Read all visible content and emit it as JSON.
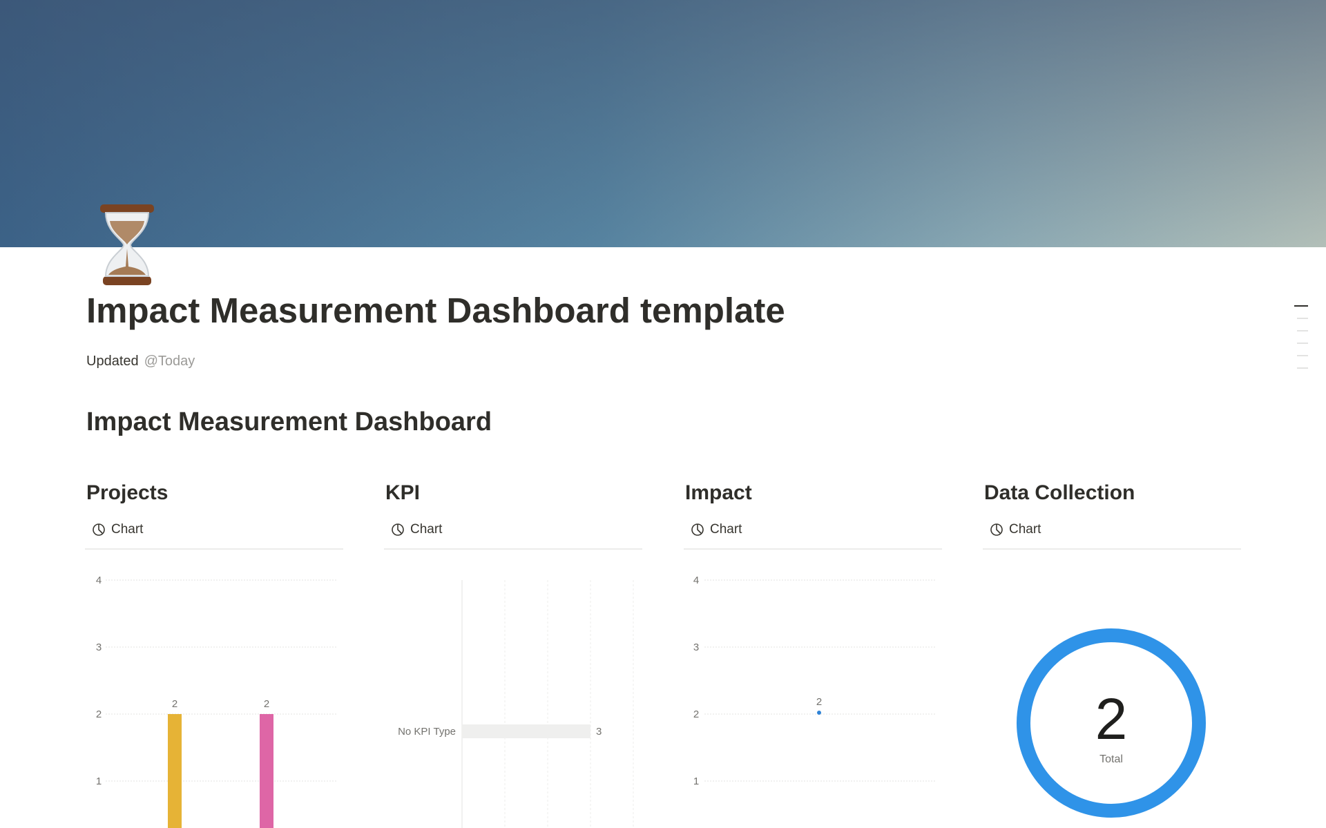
{
  "page": {
    "title": "Impact Measurement Dashboard template",
    "icon": "hourglass-icon",
    "property_label": "Updated",
    "property_value": "@Today",
    "heading": "Impact Measurement Dashboard"
  },
  "columns": [
    {
      "heading": "Projects",
      "tab_label": "Chart",
      "tab_icon": "chart-pie-icon"
    },
    {
      "heading": "KPI",
      "tab_label": "Chart",
      "tab_icon": "chart-pie-icon"
    },
    {
      "heading": "Impact",
      "tab_label": "Chart",
      "tab_icon": "chart-pie-icon"
    },
    {
      "heading": "Data Collection",
      "tab_label": "Chart",
      "tab_icon": "chart-pie-icon"
    }
  ],
  "chart_data": [
    {
      "type": "bar",
      "title": "Projects",
      "yticks": [
        "1",
        "2",
        "3",
        "4"
      ],
      "ylim": [
        0,
        4
      ],
      "grid": true,
      "values": [
        2,
        2
      ],
      "colors": [
        "#e6b336",
        "#de66a6"
      ]
    },
    {
      "type": "bar",
      "orientation": "horizontal",
      "title": "KPI",
      "categories": [
        "No KPI Type"
      ],
      "values": [
        3
      ],
      "xlim": [
        0,
        4
      ],
      "grid": true,
      "colors": [
        "#efefee"
      ]
    },
    {
      "type": "line",
      "title": "Impact",
      "yticks": [
        "1",
        "2",
        "3",
        "4"
      ],
      "ylim": [
        0,
        4
      ],
      "grid": true,
      "values": [
        2
      ],
      "colors": [
        "#2f83d6"
      ]
    },
    {
      "type": "pie",
      "title": "Data Collection",
      "donut": true,
      "total": "2",
      "total_label": "Total",
      "colors": [
        "#2f93e8"
      ]
    }
  ]
}
